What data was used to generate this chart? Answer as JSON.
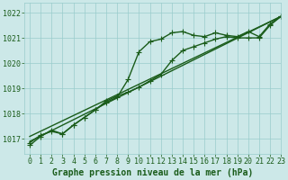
{
  "background_color": "#cce8e8",
  "grid_color": "#99cccc",
  "line_color": "#1a5c1a",
  "xlabel": "Graphe pression niveau de la mer (hPa)",
  "xlim": [
    -0.5,
    23
  ],
  "ylim": [
    1016.4,
    1022.4
  ],
  "yticks": [
    1017,
    1018,
    1019,
    1020,
    1021,
    1022
  ],
  "xticks": [
    0,
    1,
    2,
    3,
    4,
    5,
    6,
    7,
    8,
    9,
    10,
    11,
    12,
    13,
    14,
    15,
    16,
    17,
    18,
    19,
    20,
    21,
    22,
    23
  ],
  "series1_x": [
    0,
    1,
    2,
    3,
    4,
    5,
    6,
    7,
    8,
    9,
    10,
    11,
    12,
    13,
    14,
    15,
    16,
    17,
    18,
    19,
    20,
    21,
    22,
    23
  ],
  "series1_y": [
    1016.75,
    1017.1,
    1017.35,
    1017.2,
    1017.55,
    1017.85,
    1018.15,
    1018.45,
    1018.65,
    1019.35,
    1020.45,
    1020.85,
    1020.95,
    1021.2,
    1021.25,
    1021.1,
    1021.05,
    1021.2,
    1021.1,
    1021.05,
    1021.25,
    1021.05,
    1021.55,
    1021.85
  ],
  "series2_x": [
    0,
    1,
    2,
    3,
    4,
    5,
    6,
    7,
    8,
    9,
    10,
    11,
    12,
    13,
    14,
    15,
    16,
    17,
    18,
    19,
    20,
    21,
    22,
    23
  ],
  "series2_y": [
    1016.85,
    1017.15,
    1017.3,
    1017.2,
    1017.55,
    1017.85,
    1018.15,
    1018.5,
    1018.7,
    1018.85,
    1019.05,
    1019.3,
    1019.55,
    1020.1,
    1020.5,
    1020.65,
    1020.8,
    1020.95,
    1021.05,
    1021.0,
    1021.0,
    1021.0,
    1021.5,
    1021.85
  ],
  "series3_x": [
    0,
    23
  ],
  "series3_y": [
    1016.9,
    1021.85
  ],
  "series4_x": [
    0,
    23
  ],
  "series4_y": [
    1017.1,
    1021.85
  ],
  "marker_size": 4,
  "linewidth": 1.0,
  "xlabel_fontsize": 7,
  "tick_fontsize": 6
}
